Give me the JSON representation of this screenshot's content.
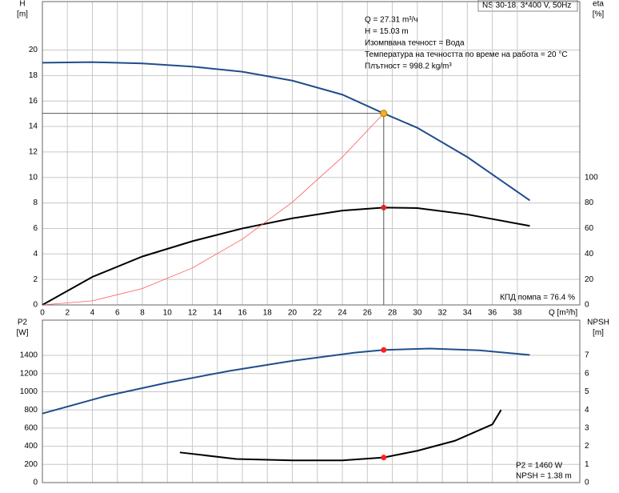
{
  "header": "NS 30-18, 3*400 V, 50Hz",
  "chart_data": [
    {
      "type": "line",
      "ylabel": "H",
      "yunit": "[m]",
      "y2label": "eta",
      "y2unit": "[%]",
      "xlabel": "Q [m³/h]",
      "xlim": [
        0,
        43
      ],
      "xticks": [
        0,
        2,
        4,
        6,
        8,
        10,
        12,
        14,
        16,
        18,
        20,
        22,
        24,
        26,
        28,
        30,
        32,
        34,
        36,
        38
      ],
      "ylim": [
        0,
        23.8
      ],
      "yticks": [
        0,
        2,
        4,
        6,
        8,
        10,
        12,
        14,
        16,
        18,
        20
      ],
      "y2lim": [
        0,
        238
      ],
      "y2ticks": [
        0,
        20,
        40,
        60,
        80,
        100
      ],
      "grid": true,
      "operating_point": {
        "q": 27.31,
        "h": 15.03
      },
      "series": [
        {
          "color": "#1f4e8c",
          "x": [
            0,
            4,
            8,
            12,
            16,
            20,
            24,
            27.31,
            30,
            34,
            39
          ],
          "values": [
            19,
            19.05,
            18.95,
            18.7,
            18.3,
            17.6,
            16.5,
            15.03,
            13.9,
            11.6,
            8.2
          ]
        },
        {
          "color": "#000000",
          "axis": "y2",
          "x": [
            0,
            4,
            8,
            12,
            16,
            20,
            24,
            27.31,
            30,
            34,
            39
          ],
          "values": [
            0,
            22,
            38,
            50,
            60,
            68,
            74,
            76.4,
            76,
            71,
            62
          ]
        },
        {
          "color": "#ff5a5a",
          "x": [
            0,
            4,
            8,
            12,
            16,
            20,
            24,
            27.31
          ],
          "values": [
            0,
            0.32,
            1.29,
            2.9,
            5.16,
            8.06,
            11.6,
            15.03
          ]
        }
      ],
      "annotations": [
        "Q = 27.31 m³/ч",
        "H = 15.03 m",
        "Изомпвана течност = Вода",
        "Температура на течността по време на работа = 20 °C",
        "Плътност = 998.2 kg/m³"
      ],
      "efficiency_note": "КПД помпа = 76.4 %"
    },
    {
      "type": "line",
      "ylabel": "P2",
      "yunit": "[W]",
      "y2label": "NPSH",
      "y2unit": "[m]",
      "xlim": [
        0,
        43
      ],
      "ylim": [
        0,
        1788
      ],
      "yticks": [
        0,
        200,
        400,
        600,
        800,
        1000,
        1200,
        1400
      ],
      "y2lim": [
        0,
        8.94
      ],
      "y2ticks": [
        0,
        1,
        2,
        3,
        4,
        5,
        6,
        7
      ],
      "grid": true,
      "series": [
        {
          "color": "#1f4e8c",
          "x": [
            0,
            5,
            10,
            15,
            20,
            25,
            27.31,
            31,
            35,
            39
          ],
          "values": [
            760,
            950,
            1100,
            1230,
            1340,
            1430,
            1460,
            1475,
            1455,
            1405
          ]
        },
        {
          "color": "#000000",
          "axis": "y2",
          "x": [
            11,
            15.5,
            20,
            24,
            27.31,
            30,
            33,
            36,
            36.7
          ],
          "values": [
            1.66,
            1.3,
            1.22,
            1.22,
            1.38,
            1.75,
            2.3,
            3.2,
            4.0
          ]
        }
      ],
      "notes": [
        "P2 = 1460 W",
        "NPSH = 1.38 m"
      ]
    }
  ]
}
